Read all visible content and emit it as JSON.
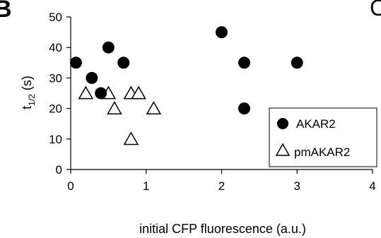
{
  "panel_letters": {
    "left": "B",
    "right": "C"
  },
  "chart_data": {
    "type": "scatter",
    "title": "",
    "xlabel": "initial CFP fluorescence (a.u.)",
    "ylabel_main": "t",
    "ylabel_sub": "1/2",
    "ylabel_unit": " (s)",
    "xlim": [
      0,
      4
    ],
    "ylim": [
      0,
      50
    ],
    "xticks": [
      0,
      1,
      2,
      3,
      4
    ],
    "yticks": [
      0,
      10,
      20,
      30,
      40,
      50
    ],
    "grid": false,
    "legend_position": "bottom-right",
    "series": [
      {
        "name": "AKAR2",
        "marker": "filled-circle",
        "color": "#000000",
        "points": [
          {
            "x": 0.07,
            "y": 35
          },
          {
            "x": 0.28,
            "y": 30
          },
          {
            "x": 0.4,
            "y": 25
          },
          {
            "x": 0.5,
            "y": 40
          },
          {
            "x": 0.7,
            "y": 35
          },
          {
            "x": 2.0,
            "y": 45
          },
          {
            "x": 2.3,
            "y": 35
          },
          {
            "x": 2.3,
            "y": 20
          },
          {
            "x": 3.0,
            "y": 35
          }
        ]
      },
      {
        "name": "pmAKAR2",
        "marker": "open-triangle",
        "color": "#000000",
        "points": [
          {
            "x": 0.2,
            "y": 25
          },
          {
            "x": 0.5,
            "y": 25
          },
          {
            "x": 0.58,
            "y": 20
          },
          {
            "x": 0.8,
            "y": 25
          },
          {
            "x": 0.9,
            "y": 25
          },
          {
            "x": 0.8,
            "y": 10
          },
          {
            "x": 1.1,
            "y": 20
          }
        ]
      }
    ]
  }
}
